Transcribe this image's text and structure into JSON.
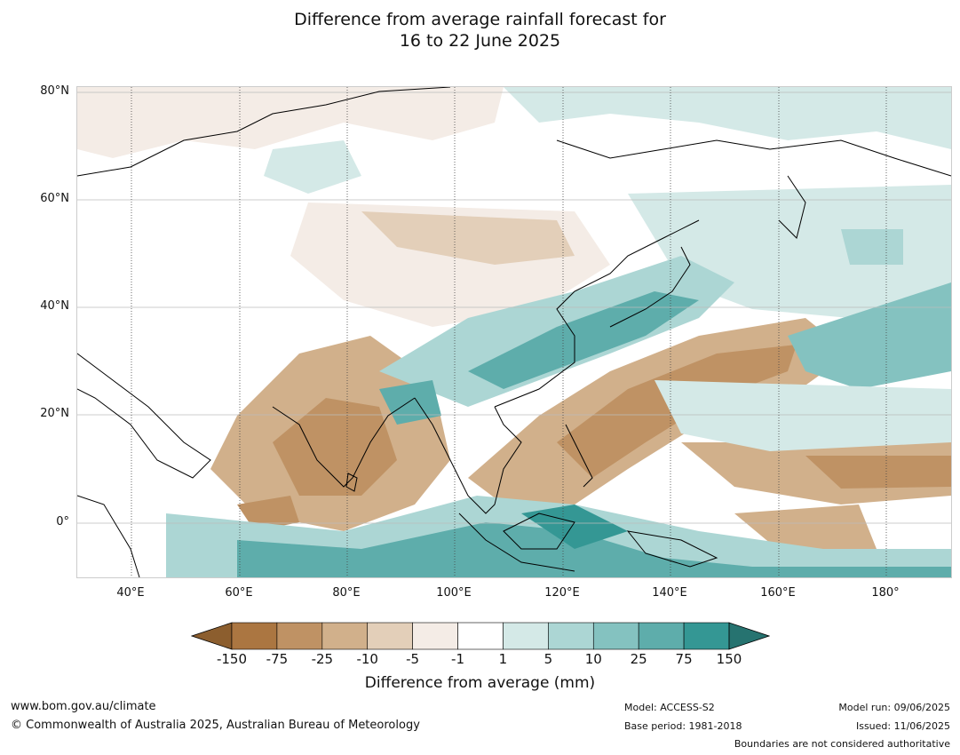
{
  "title": {
    "line1": "Difference from average rainfall forecast for",
    "line2": "16 to 22 June 2025"
  },
  "map": {
    "lat_labels": [
      "80°N",
      "60°N",
      "40°N",
      "20°N",
      "0°"
    ],
    "lon_labels": [
      "40°E",
      "60°E",
      "80°E",
      "100°E",
      "120°E",
      "140°E",
      "160°E",
      "180°"
    ],
    "lat_range": [
      -10,
      81
    ],
    "lon_range": [
      30,
      192
    ]
  },
  "legend": {
    "title": "Difference from average (mm)",
    "ticks": [
      "-150",
      "-75",
      "-25",
      "-10",
      "-5",
      "-1",
      "1",
      "5",
      "10",
      "25",
      "75",
      "150"
    ],
    "colors": [
      "#8c5e2e",
      "#ab7641",
      "#bf9264",
      "#d1b08b",
      "#e3cfb9",
      "#f4ece6",
      "#ffffff",
      "#d4e9e7",
      "#acd6d4",
      "#84c2c0",
      "#5eadab",
      "#349794",
      "#267370"
    ]
  },
  "footer": {
    "website": "www.bom.gov.au/climate",
    "copyright": "© Commonwealth of Australia 2025, Australian Bureau of Meteorology",
    "model": "Model: ACCESS-S2",
    "base_period": "Base period: 1981-2018",
    "model_run": "Model run: 09/06/2025",
    "issued": "Issued: 11/06/2025",
    "disclaimer": "Boundaries are not considered authoritative"
  }
}
